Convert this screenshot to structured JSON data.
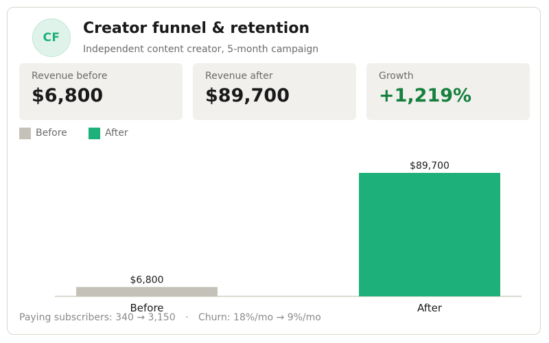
{
  "header": {
    "avatar_initials": "CF",
    "title": "Creator funnel & retention",
    "subtitle": "Independent content creator, 5-month campaign"
  },
  "kpis": [
    {
      "label": "Revenue before",
      "value": "$6,800"
    },
    {
      "label": "Revenue after",
      "value": "$89,700"
    },
    {
      "label": "Growth",
      "value": "+1,219%"
    }
  ],
  "legend": [
    {
      "label": "Before",
      "color": "#c4c2b8"
    },
    {
      "label": "After",
      "color": "#1db07a"
    }
  ],
  "chart_data": {
    "type": "bar",
    "categories": [
      "Before",
      "After"
    ],
    "values": [
      6800,
      89700
    ],
    "value_labels": [
      "$6,800",
      "$89,700"
    ],
    "colors": [
      "#c4c2b8",
      "#1db07a"
    ],
    "title": "",
    "xlabel": "",
    "ylabel": "",
    "ylim": [
      0,
      100000
    ],
    "grid": false
  },
  "footer": {
    "subscribers": "Paying subscribers: 340 → 3,150",
    "separator": "·",
    "churn": "Churn: 18%/mo → 9%/mo"
  },
  "colors": {
    "accent": "#1db07a",
    "growth": "#15803d",
    "muted_bar": "#c4c2b8"
  }
}
